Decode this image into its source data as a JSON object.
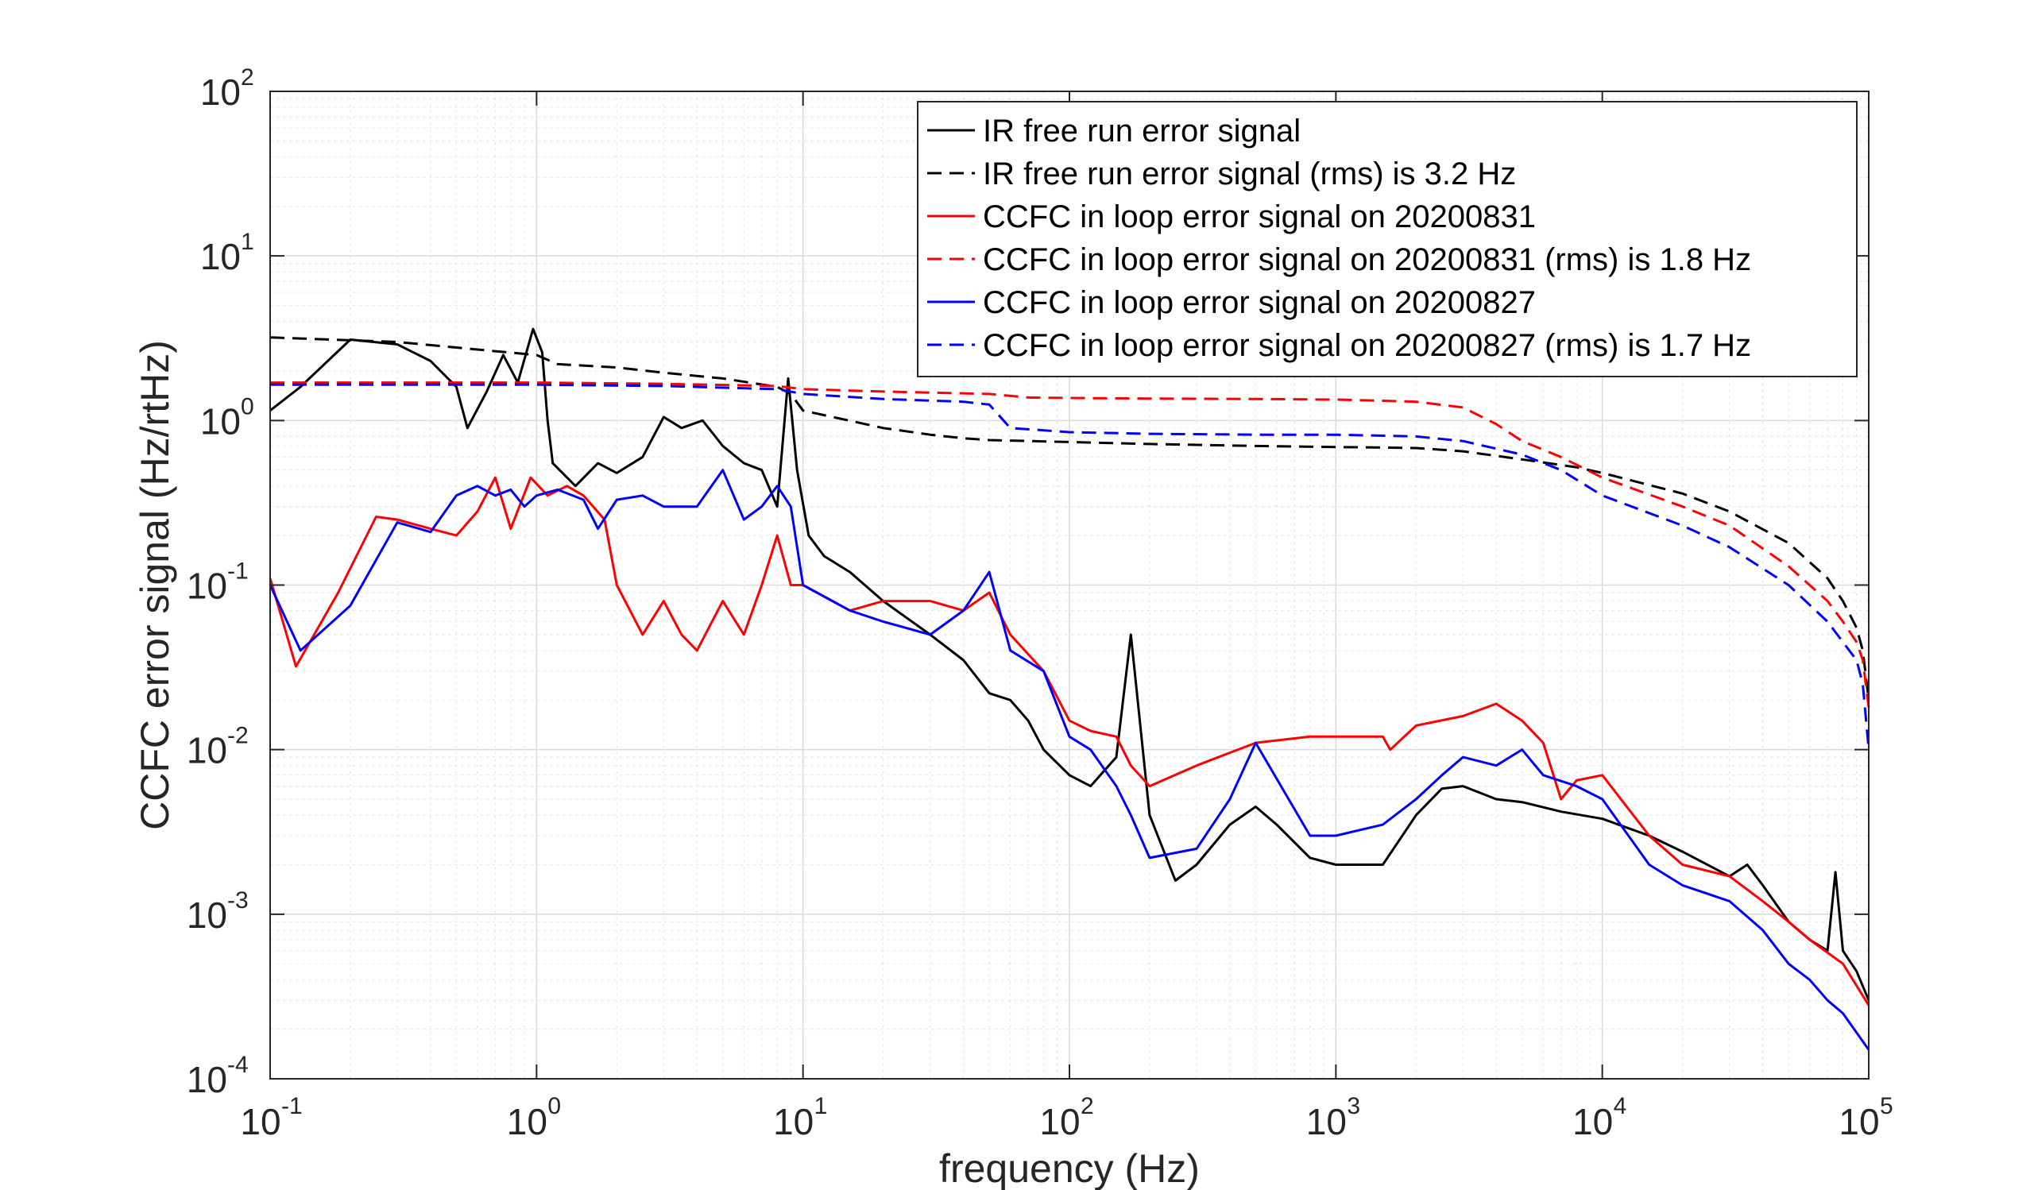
{
  "chart_data": {
    "type": "line",
    "xlabel": "frequency (Hz)",
    "ylabel": "CCFC error signal (Hz/rtHz)",
    "xscale": "log",
    "yscale": "log",
    "xlim": [
      0.1,
      100000
    ],
    "ylim": [
      0.0001,
      100
    ],
    "grid": "on (major and minor)",
    "legend_position": "top-right",
    "x_ticks": [
      {
        "base": "10",
        "exp": "-1",
        "value": 0.1
      },
      {
        "base": "10",
        "exp": "0",
        "value": 1
      },
      {
        "base": "10",
        "exp": "1",
        "value": 10
      },
      {
        "base": "10",
        "exp": "2",
        "value": 100
      },
      {
        "base": "10",
        "exp": "3",
        "value": 1000
      },
      {
        "base": "10",
        "exp": "4",
        "value": 10000
      },
      {
        "base": "10",
        "exp": "5",
        "value": 100000
      }
    ],
    "y_ticks": [
      {
        "base": "10",
        "exp": "-4",
        "value": 0.0001
      },
      {
        "base": "10",
        "exp": "-3",
        "value": 0.001
      },
      {
        "base": "10",
        "exp": "-2",
        "value": 0.01
      },
      {
        "base": "10",
        "exp": "-1",
        "value": 0.1
      },
      {
        "base": "10",
        "exp": "0",
        "value": 1
      },
      {
        "base": "10",
        "exp": "1",
        "value": 10
      },
      {
        "base": "10",
        "exp": "2",
        "value": 100
      }
    ],
    "series": [
      {
        "name": "IR free run error signal",
        "color": "#000000",
        "dash": "solid",
        "points": [
          [
            0.1,
            1.15
          ],
          [
            0.13,
            1.6
          ],
          [
            0.2,
            3.1
          ],
          [
            0.3,
            2.9
          ],
          [
            0.4,
            2.3
          ],
          [
            0.5,
            1.6
          ],
          [
            0.55,
            0.9
          ],
          [
            0.65,
            1.5
          ],
          [
            0.75,
            2.5
          ],
          [
            0.85,
            1.7
          ],
          [
            0.97,
            3.6
          ],
          [
            1.05,
            2.6
          ],
          [
            1.1,
            1.0
          ],
          [
            1.15,
            0.55
          ],
          [
            1.4,
            0.4
          ],
          [
            1.7,
            0.55
          ],
          [
            2.0,
            0.48
          ],
          [
            2.5,
            0.6
          ],
          [
            3.0,
            1.05
          ],
          [
            3.5,
            0.9
          ],
          [
            4.2,
            1.0
          ],
          [
            5,
            0.7
          ],
          [
            6,
            0.55
          ],
          [
            7,
            0.5
          ],
          [
            8,
            0.3
          ],
          [
            8.8,
            1.8
          ],
          [
            9.5,
            0.5
          ],
          [
            10.5,
            0.2
          ],
          [
            12,
            0.15
          ],
          [
            15,
            0.12
          ],
          [
            20,
            0.08
          ],
          [
            30,
            0.05
          ],
          [
            40,
            0.035
          ],
          [
            50,
            0.022
          ],
          [
            60,
            0.02
          ],
          [
            70,
            0.015
          ],
          [
            80,
            0.01
          ],
          [
            100,
            0.007
          ],
          [
            120,
            0.006
          ],
          [
            150,
            0.009
          ],
          [
            170,
            0.05
          ],
          [
            200,
            0.004
          ],
          [
            250,
            0.0016
          ],
          [
            300,
            0.002
          ],
          [
            400,
            0.0035
          ],
          [
            500,
            0.0045
          ],
          [
            600,
            0.0035
          ],
          [
            800,
            0.0022
          ],
          [
            1000,
            0.002
          ],
          [
            1500,
            0.002
          ],
          [
            2000,
            0.004
          ],
          [
            2500,
            0.0058
          ],
          [
            3000,
            0.006
          ],
          [
            4000,
            0.005
          ],
          [
            5000,
            0.0048
          ],
          [
            7000,
            0.0042
          ],
          [
            10000,
            0.0038
          ],
          [
            15000,
            0.003
          ],
          [
            20000,
            0.0024
          ],
          [
            30000,
            0.0017
          ],
          [
            35000,
            0.002
          ],
          [
            40000,
            0.0015
          ],
          [
            50000,
            0.0009
          ],
          [
            60000,
            0.0007
          ],
          [
            70000,
            0.0006
          ],
          [
            75000,
            0.0018
          ],
          [
            80000,
            0.0006
          ],
          [
            90000,
            0.00045
          ],
          [
            100000,
            0.0003
          ]
        ]
      },
      {
        "name": "IR free run error signal (rms) is 3.2 Hz",
        "color": "#000000",
        "dash": "dashed",
        "points": [
          [
            0.1,
            3.2
          ],
          [
            0.3,
            3.0
          ],
          [
            0.6,
            2.7
          ],
          [
            1,
            2.5
          ],
          [
            1.2,
            2.2
          ],
          [
            2,
            2.1
          ],
          [
            3,
            1.95
          ],
          [
            5,
            1.8
          ],
          [
            8,
            1.6
          ],
          [
            9,
            1.45
          ],
          [
            10,
            1.15
          ],
          [
            20,
            0.9
          ],
          [
            30,
            0.82
          ],
          [
            40,
            0.78
          ],
          [
            50,
            0.76
          ],
          [
            100,
            0.74
          ],
          [
            200,
            0.72
          ],
          [
            500,
            0.7
          ],
          [
            1000,
            0.69
          ],
          [
            2000,
            0.68
          ],
          [
            3000,
            0.65
          ],
          [
            5000,
            0.58
          ],
          [
            8000,
            0.52
          ],
          [
            10000,
            0.48
          ],
          [
            20000,
            0.36
          ],
          [
            30000,
            0.28
          ],
          [
            50000,
            0.18
          ],
          [
            70000,
            0.11
          ],
          [
            80000,
            0.08
          ],
          [
            90000,
            0.055
          ],
          [
            95000,
            0.04
          ],
          [
            100000,
            0.02
          ]
        ]
      },
      {
        "name": "CCFC in loop error signal on 20200831",
        "color": "#ff0000",
        "dash": "solid",
        "points": [
          [
            0.1,
            0.11
          ],
          [
            0.125,
            0.032
          ],
          [
            0.18,
            0.09
          ],
          [
            0.25,
            0.26
          ],
          [
            0.3,
            0.25
          ],
          [
            0.4,
            0.22
          ],
          [
            0.5,
            0.2
          ],
          [
            0.6,
            0.28
          ],
          [
            0.7,
            0.45
          ],
          [
            0.8,
            0.22
          ],
          [
            0.95,
            0.45
          ],
          [
            1.1,
            0.35
          ],
          [
            1.3,
            0.4
          ],
          [
            1.5,
            0.35
          ],
          [
            1.8,
            0.25
          ],
          [
            2,
            0.1
          ],
          [
            2.5,
            0.05
          ],
          [
            3,
            0.08
          ],
          [
            3.5,
            0.05
          ],
          [
            4,
            0.04
          ],
          [
            5,
            0.08
          ],
          [
            6,
            0.05
          ],
          [
            7,
            0.1
          ],
          [
            8,
            0.2
          ],
          [
            9,
            0.1
          ],
          [
            10,
            0.1
          ],
          [
            15,
            0.07
          ],
          [
            20,
            0.08
          ],
          [
            30,
            0.08
          ],
          [
            40,
            0.07
          ],
          [
            50,
            0.09
          ],
          [
            60,
            0.05
          ],
          [
            80,
            0.03
          ],
          [
            100,
            0.015
          ],
          [
            120,
            0.013
          ],
          [
            150,
            0.012
          ],
          [
            170,
            0.008
          ],
          [
            200,
            0.006
          ],
          [
            300,
            0.008
          ],
          [
            500,
            0.011
          ],
          [
            800,
            0.012
          ],
          [
            1000,
            0.012
          ],
          [
            1500,
            0.012
          ],
          [
            1600,
            0.01
          ],
          [
            2000,
            0.014
          ],
          [
            3000,
            0.016
          ],
          [
            4000,
            0.019
          ],
          [
            5000,
            0.015
          ],
          [
            6000,
            0.011
          ],
          [
            7000,
            0.005
          ],
          [
            8000,
            0.0065
          ],
          [
            10000,
            0.007
          ],
          [
            15000,
            0.003
          ],
          [
            20000,
            0.002
          ],
          [
            30000,
            0.0017
          ],
          [
            40000,
            0.0012
          ],
          [
            50000,
            0.0009
          ],
          [
            60000,
            0.0007
          ],
          [
            80000,
            0.0005
          ],
          [
            100000,
            0.00028
          ]
        ]
      },
      {
        "name": "CCFC in loop error signal on 20200831 (rms) is 1.8 Hz",
        "color": "#ff0000",
        "dash": "dashed",
        "points": [
          [
            0.1,
            1.7
          ],
          [
            1,
            1.7
          ],
          [
            3,
            1.67
          ],
          [
            8,
            1.62
          ],
          [
            10,
            1.55
          ],
          [
            20,
            1.5
          ],
          [
            50,
            1.45
          ],
          [
            70,
            1.38
          ],
          [
            100,
            1.37
          ],
          [
            200,
            1.36
          ],
          [
            500,
            1.35
          ],
          [
            1000,
            1.34
          ],
          [
            2000,
            1.3
          ],
          [
            3000,
            1.2
          ],
          [
            4000,
            0.95
          ],
          [
            5000,
            0.75
          ],
          [
            7000,
            0.6
          ],
          [
            10000,
            0.45
          ],
          [
            20000,
            0.3
          ],
          [
            30000,
            0.23
          ],
          [
            50000,
            0.13
          ],
          [
            70000,
            0.08
          ],
          [
            80000,
            0.06
          ],
          [
            90000,
            0.045
          ],
          [
            95000,
            0.035
          ],
          [
            100000,
            0.018
          ]
        ]
      },
      {
        "name": "CCFC in loop error signal on 20200827",
        "color": "#0000ff",
        "dash": "solid",
        "points": [
          [
            0.1,
            0.1
          ],
          [
            0.13,
            0.04
          ],
          [
            0.2,
            0.075
          ],
          [
            0.3,
            0.24
          ],
          [
            0.4,
            0.21
          ],
          [
            0.5,
            0.35
          ],
          [
            0.6,
            0.4
          ],
          [
            0.7,
            0.35
          ],
          [
            0.8,
            0.38
          ],
          [
            0.9,
            0.3
          ],
          [
            1,
            0.35
          ],
          [
            1.2,
            0.38
          ],
          [
            1.5,
            0.33
          ],
          [
            1.7,
            0.22
          ],
          [
            2,
            0.33
          ],
          [
            2.5,
            0.35
          ],
          [
            3,
            0.3
          ],
          [
            4,
            0.3
          ],
          [
            5,
            0.5
          ],
          [
            6,
            0.25
          ],
          [
            7,
            0.3
          ],
          [
            8,
            0.4
          ],
          [
            9,
            0.3
          ],
          [
            10,
            0.1
          ],
          [
            15,
            0.07
          ],
          [
            20,
            0.06
          ],
          [
            30,
            0.05
          ],
          [
            40,
            0.07
          ],
          [
            50,
            0.12
          ],
          [
            60,
            0.04
          ],
          [
            80,
            0.03
          ],
          [
            100,
            0.012
          ],
          [
            120,
            0.01
          ],
          [
            150,
            0.006
          ],
          [
            170,
            0.004
          ],
          [
            200,
            0.0022
          ],
          [
            300,
            0.0025
          ],
          [
            400,
            0.005
          ],
          [
            500,
            0.011
          ],
          [
            800,
            0.003
          ],
          [
            1000,
            0.003
          ],
          [
            1500,
            0.0035
          ],
          [
            2000,
            0.005
          ],
          [
            2500,
            0.007
          ],
          [
            3000,
            0.009
          ],
          [
            4000,
            0.008
          ],
          [
            5000,
            0.01
          ],
          [
            6000,
            0.007
          ],
          [
            8000,
            0.006
          ],
          [
            10000,
            0.005
          ],
          [
            15000,
            0.002
          ],
          [
            20000,
            0.0015
          ],
          [
            30000,
            0.0012
          ],
          [
            40000,
            0.0008
          ],
          [
            50000,
            0.0005
          ],
          [
            60000,
            0.0004
          ],
          [
            70000,
            0.0003
          ],
          [
            80000,
            0.00025
          ],
          [
            100000,
            0.00015
          ]
        ]
      },
      {
        "name": "CCFC in loop error signal on 20200827 (rms) is 1.7 Hz",
        "color": "#0000ff",
        "dash": "dashed",
        "points": [
          [
            0.1,
            1.65
          ],
          [
            1,
            1.65
          ],
          [
            3,
            1.62
          ],
          [
            8,
            1.55
          ],
          [
            10,
            1.45
          ],
          [
            20,
            1.35
          ],
          [
            40,
            1.3
          ],
          [
            50,
            1.25
          ],
          [
            60,
            0.9
          ],
          [
            100,
            0.85
          ],
          [
            200,
            0.83
          ],
          [
            500,
            0.82
          ],
          [
            1000,
            0.82
          ],
          [
            2000,
            0.8
          ],
          [
            3000,
            0.75
          ],
          [
            5000,
            0.62
          ],
          [
            7000,
            0.5
          ],
          [
            10000,
            0.35
          ],
          [
            20000,
            0.23
          ],
          [
            30000,
            0.17
          ],
          [
            50000,
            0.1
          ],
          [
            70000,
            0.06
          ],
          [
            80000,
            0.045
          ],
          [
            90000,
            0.035
          ],
          [
            95000,
            0.025
          ],
          [
            100000,
            0.01
          ]
        ]
      }
    ]
  }
}
